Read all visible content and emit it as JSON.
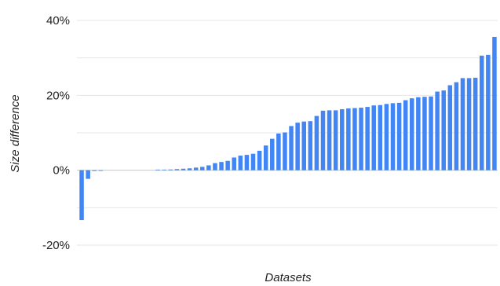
{
  "chart_data": {
    "type": "bar",
    "xlabel": "Datasets",
    "ylabel": "Size difference",
    "ylim": [
      -20,
      40
    ],
    "yticks": [
      40,
      20,
      0,
      -20
    ],
    "ytick_labels": [
      "40%",
      "20%",
      "0%",
      "-20%"
    ],
    "minor_gridlines": [
      30,
      10,
      -10
    ],
    "grid": true,
    "bar_color": "#4285f4",
    "values": [
      -13.3,
      -2.3,
      -0.2,
      -0.1,
      0,
      0,
      0,
      0,
      0,
      0,
      0,
      0,
      0.05,
      0.1,
      0.2,
      0.3,
      0.4,
      0.5,
      0.7,
      0.9,
      1.3,
      1.9,
      2.2,
      2.5,
      3.4,
      3.9,
      4.1,
      4.4,
      5.2,
      6.6,
      8.4,
      9.8,
      10.1,
      11.8,
      12.7,
      13.0,
      13.1,
      14.5,
      15.9,
      16.0,
      16.0,
      16.3,
      16.5,
      16.6,
      16.7,
      16.9,
      17.3,
      17.4,
      17.7,
      17.9,
      18.0,
      18.7,
      19.2,
      19.5,
      19.6,
      19.7,
      21.0,
      21.3,
      22.7,
      23.5,
      24.6,
      24.6,
      24.7,
      30.6,
      30.8,
      35.6
    ]
  }
}
